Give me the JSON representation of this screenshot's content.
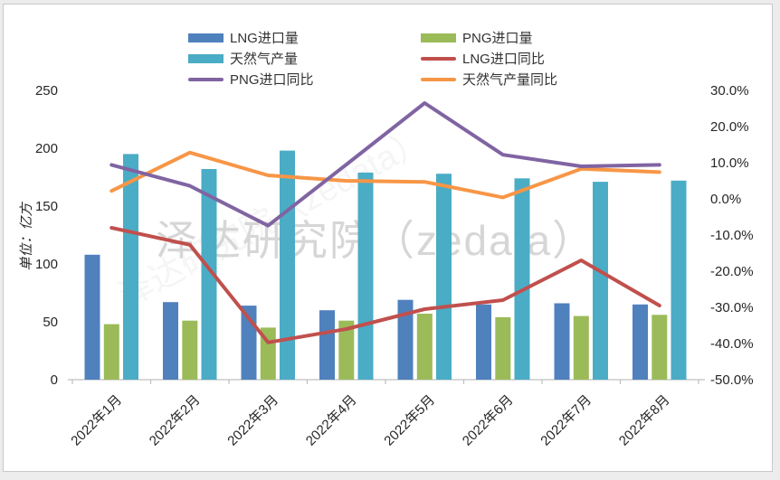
{
  "page": {
    "background_color": "#ececec",
    "panel_background": "#ffffff",
    "panel_border_color": "#c9c9c9"
  },
  "watermark": {
    "text": "泽达研究院（zedata）",
    "color": "#d0d0d0"
  },
  "chart_data": {
    "type": "bar",
    "subtype": "combo-bar-line-dual-axis",
    "categories": [
      "2022年1月",
      "2022年2月",
      "2022年3月",
      "2022年4月",
      "2022年5月",
      "2022年6月",
      "2022年7月",
      "2022年8月"
    ],
    "series": [
      {
        "name": "LNG进口量",
        "type": "bar",
        "axis": "left",
        "color": "#4f81bd",
        "values": [
          108,
          67,
          64,
          60,
          69,
          65,
          66,
          65
        ]
      },
      {
        "name": "PNG进口量",
        "type": "bar",
        "axis": "left",
        "color": "#9bbb59",
        "values": [
          48,
          51,
          45,
          51,
          57,
          54,
          55,
          56
        ]
      },
      {
        "name": "天然气产量",
        "type": "bar",
        "axis": "left",
        "color": "#4bacc6",
        "values": [
          195,
          182,
          198,
          179,
          178,
          174,
          171,
          172
        ]
      },
      {
        "name": "LNG进口同比",
        "type": "line",
        "axis": "right",
        "color": "#c0504d",
        "values": [
          -8.0,
          -12.7,
          -39.7,
          -36.0,
          -30.5,
          -28.0,
          -17.0,
          -29.5
        ]
      },
      {
        "name": "PNG进口同比",
        "type": "line",
        "axis": "right",
        "color": "#8064a2",
        "values": [
          9.4,
          3.6,
          -7.4,
          9.5,
          26.5,
          12.2,
          9.0,
          9.4
        ]
      },
      {
        "name": "天然气产量同比",
        "type": "line",
        "axis": "right",
        "color": "#f79646",
        "values": [
          2.2,
          12.8,
          6.5,
          5.0,
          4.7,
          0.4,
          8.3,
          7.4
        ]
      }
    ],
    "left_axis": {
      "title": "单位：亿方",
      "min": 0,
      "max": 250,
      "step": 50,
      "tick_labels": [
        "250",
        "200",
        "150",
        "100",
        "50",
        "0"
      ]
    },
    "right_axis": {
      "min": -50,
      "max": 30,
      "step": 10,
      "tick_labels": [
        "30.0%",
        "20.0%",
        "10.0%",
        "0.0%",
        "-10.0%",
        "-20.0%",
        "-30.0%",
        "-40.0%",
        "-50.0%"
      ],
      "format": "percent"
    },
    "legend_position": "top",
    "grid": false,
    "line_draw_order": [
      3,
      5,
      4
    ],
    "axis_color": "#bfbfbf",
    "text_color": "#262626"
  }
}
